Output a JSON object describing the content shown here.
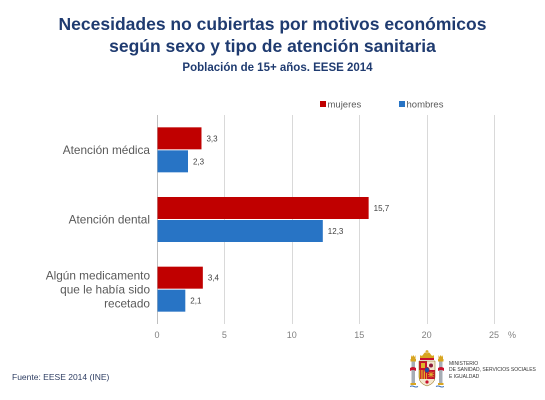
{
  "theme": {
    "title_color": "#1f3b70"
  },
  "chart_data": {
    "type": "bar",
    "orientation": "horizontal",
    "title": "Necesidades no cubiertas por motivos económicos según sexo y tipo de atención sanitaria",
    "subtitle": "Población de 15+ años. EESE 2014",
    "categories": [
      "Atención médica",
      "Atención dental",
      "Algún medicamento que le había sido recetado"
    ],
    "series": [
      {
        "name": "mujeres",
        "color": "#c00000",
        "values": [
          3.3,
          15.7,
          3.4
        ],
        "labels": [
          "3,3",
          "15,7",
          "3,4"
        ]
      },
      {
        "name": "hombres",
        "color": "#2874c5",
        "values": [
          2.3,
          12.3,
          2.1
        ],
        "labels": [
          "2,3",
          "12,3",
          "2,1"
        ]
      }
    ],
    "xlabel": "%",
    "xlim": [
      0,
      25
    ],
    "xticks": [
      0,
      5,
      10,
      15,
      20,
      25
    ],
    "grid": true,
    "legend_position": "top-right"
  },
  "footer": {
    "source": "Fuente: EESE 2014 (INE)"
  },
  "logo": {
    "icon": "coat-of-arms-icon",
    "lines": [
      "MINISTERIO",
      "DE SANIDAD, SERVICIOS SOCIALES",
      "E IGUALDAD"
    ]
  }
}
